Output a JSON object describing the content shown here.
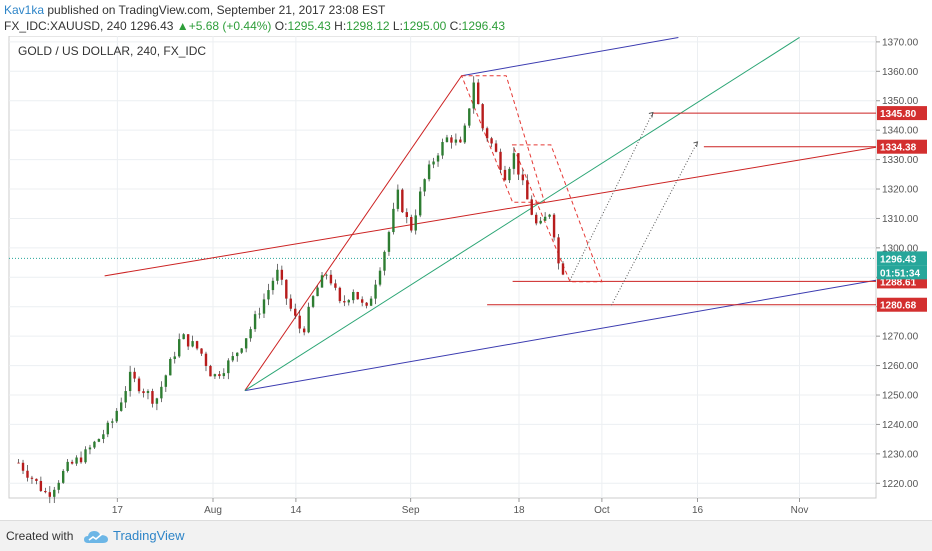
{
  "header": {
    "author": "Kav1ka",
    "published_text": "published on TradingView.com, September 21, 2017 23:08 EST",
    "symbol": "FX_IDC:XAUUSD, 240",
    "last": "1296.43",
    "change": "+5.68 (+0.44%)",
    "o_label": "O:",
    "o_value": "1295.43",
    "h_label": "H:",
    "h_value": "1298.12",
    "l_label": "L:",
    "l_value": "1295.00",
    "c_label": "C:",
    "c_value": "1296.43"
  },
  "chart_data": {
    "type": "candlestick",
    "title": "GOLD / US DOLLAR, 240, FX_IDC",
    "ylim": [
      1215,
      1372
    ],
    "x_tick_labels": [
      {
        "label": "17",
        "day": 17
      },
      {
        "label": "Aug",
        "day": 32
      },
      {
        "label": "14",
        "day": 45
      },
      {
        "label": "Sep",
        "day": 63
      },
      {
        "label": "18",
        "day": 80
      },
      {
        "label": "Oct",
        "day": 93
      },
      {
        "label": "16",
        "day": 108
      },
      {
        "label": "Nov",
        "day": 124
      }
    ],
    "y_ticks": [
      1220,
      1230,
      1240,
      1250,
      1260,
      1270,
      1280,
      1290,
      1300,
      1310,
      1320,
      1330,
      1340,
      1350,
      1360,
      1370
    ],
    "y_tick_labels": [
      "1220.00",
      "1230.00",
      "1240.00",
      "1250.00",
      "1260.00",
      "1270.00",
      "1280.00",
      "1290.00",
      "1300.00",
      "1310.00",
      "1320.00",
      "1330.00",
      "1340.00",
      "1350.00",
      "1360.00",
      "1370.00"
    ],
    "price_path": [
      [
        1.5,
        1227
      ],
      [
        6,
        1216
      ],
      [
        9,
        1225
      ],
      [
        12,
        1230
      ],
      [
        16,
        1240
      ],
      [
        19,
        1256
      ],
      [
        23,
        1248
      ],
      [
        27,
        1270
      ],
      [
        30,
        1265
      ],
      [
        32,
        1256
      ],
      [
        35,
        1262
      ],
      [
        38,
        1273
      ],
      [
        42,
        1292
      ],
      [
        44,
        1280
      ],
      [
        46,
        1271
      ],
      [
        48,
        1285
      ],
      [
        50,
        1292
      ],
      [
        52,
        1280
      ],
      [
        54,
        1286
      ],
      [
        56,
        1278
      ],
      [
        59,
        1300
      ],
      [
        61,
        1318
      ],
      [
        63,
        1306
      ],
      [
        65,
        1322
      ],
      [
        67,
        1332
      ],
      [
        69,
        1338
      ],
      [
        71,
        1334
      ],
      [
        73,
        1358
      ],
      [
        74,
        1342
      ],
      [
        76,
        1334
      ],
      [
        78,
        1324
      ],
      [
        79,
        1333
      ],
      [
        81,
        1318
      ],
      [
        83,
        1306
      ],
      [
        85,
        1313
      ],
      [
        86.5,
        1290
      ],
      [
        87.5,
        1296.43
      ]
    ],
    "price_labels": [
      {
        "value": 1345.8,
        "label": "1345.80"
      },
      {
        "value": 1334.38,
        "label": "1334.38"
      },
      {
        "value": 1296.43,
        "label": "1296.43"
      },
      {
        "value": 1288.61,
        "label": "1288.61"
      },
      {
        "value": 1280.68,
        "label": "1280.68"
      }
    ],
    "countdown": "01:51:34",
    "horizontal_lines": [
      {
        "value": 1345.8,
        "from_day": 101
      },
      {
        "value": 1334.38,
        "from_day": 109
      },
      {
        "value": 1288.61,
        "from_day": 79
      },
      {
        "value": 1280.68,
        "from_day": 75
      }
    ],
    "trend_lines": [
      {
        "x1": 37,
        "y1": 1251.5,
        "x2": 71,
        "y2": 1358.5,
        "color": "#cc2222"
      },
      {
        "x1": 37,
        "y1": 1251.5,
        "x2": 136,
        "y2": 1289,
        "color": "#3b3bb0"
      },
      {
        "x1": 71,
        "y1": 1358.5,
        "x2": 105,
        "y2": 1371.5,
        "color": "#3b3bb0"
      },
      {
        "x1": 37,
        "y1": 1251.5,
        "x2": 124,
        "y2": 1371.5,
        "color": "#2aa574"
      },
      {
        "x1": 15,
        "y1": 1290.5,
        "x2": 136,
        "y2": 1334.2,
        "color": "#cc2222"
      }
    ]
  },
  "footer": {
    "created_with": "Created with",
    "brand": "TradingView"
  }
}
